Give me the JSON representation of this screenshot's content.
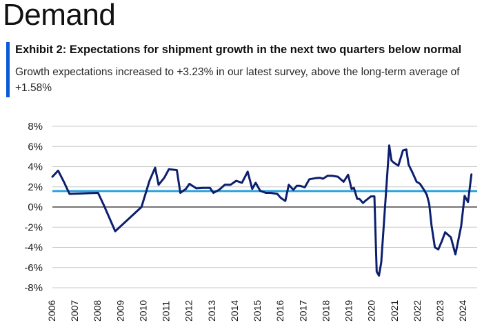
{
  "page": {
    "heading": "Demand"
  },
  "exhibit": {
    "title": "Exhibit 2: Expectations for shipment growth in the next two quarters below normal",
    "subtitle": "Growth expectations increased to +3.23% in our latest survey, above the long-term average of +1.58%"
  },
  "colors": {
    "accent": "#0a5bd6",
    "series": "#0c1f6e",
    "average": "#2aa3dc",
    "grid": "#c8c8c8"
  },
  "chart_data": {
    "type": "line",
    "title": "",
    "xlabel": "",
    "ylabel": "",
    "ylim": [
      -8,
      8
    ],
    "xlim": [
      2006,
      2024.6
    ],
    "y_ticks": [
      8,
      6,
      4,
      2,
      0,
      -2,
      -4,
      -6,
      -8
    ],
    "y_tick_labels": [
      "8%",
      "6%",
      "4%",
      "2%",
      "0%",
      "-2%",
      "-4%",
      "-6%",
      "-8%"
    ],
    "x_ticks": [
      2006,
      2007,
      2008,
      2009,
      2010,
      2011,
      2012,
      2013,
      2014,
      2015,
      2016,
      2017,
      2018,
      2019,
      2020,
      2021,
      2022,
      2023,
      2024
    ],
    "x_tick_labels": [
      "2006",
      "2007",
      "2008",
      "2009",
      "2010",
      "2011",
      "2012",
      "2013",
      "2014",
      "2015",
      "2016",
      "2017",
      "2018",
      "2019",
      "2020",
      "2021",
      "2022",
      "2023",
      "2024"
    ],
    "long_term_average": 1.58,
    "series": [
      {
        "name": "Shipment growth expectations",
        "x": [
          2006.0,
          2006.25,
          2006.5,
          2006.75,
          2008.0,
          2008.25,
          2008.75,
          2009.9,
          2010.25,
          2010.5,
          2010.65,
          2010.9,
          2011.1,
          2011.45,
          2011.6,
          2011.85,
          2012.0,
          2012.3,
          2012.6,
          2012.9,
          2013.05,
          2013.3,
          2013.55,
          2013.8,
          2014.05,
          2014.3,
          2014.55,
          2014.75,
          2014.9,
          2015.1,
          2015.35,
          2015.55,
          2015.85,
          2016.0,
          2016.2,
          2016.35,
          2016.55,
          2016.7,
          2016.85,
          2017.05,
          2017.25,
          2017.5,
          2017.7,
          2017.85,
          2018.05,
          2018.25,
          2018.5,
          2018.75,
          2018.95,
          2019.1,
          2019.2,
          2019.35,
          2019.45,
          2019.6,
          2019.75,
          2019.95,
          2020.1,
          2020.2,
          2020.3,
          2020.4,
          2020.55,
          2020.75,
          2020.85,
          2020.95,
          2021.15,
          2021.35,
          2021.5,
          2021.6,
          2021.75,
          2021.95,
          2022.1,
          2022.3,
          2022.4,
          2022.5,
          2022.6,
          2022.75,
          2022.9,
          2023.05,
          2023.2,
          2023.45,
          2023.65,
          2023.9,
          2024.05,
          2024.2,
          2024.35
        ],
        "values": [
          3.0,
          3.6,
          2.5,
          1.3,
          1.4,
          0.2,
          -2.4,
          0.0,
          2.6,
          3.9,
          2.2,
          2.9,
          3.75,
          3.65,
          1.4,
          1.8,
          2.3,
          1.85,
          1.9,
          1.9,
          1.4,
          1.7,
          2.2,
          2.2,
          2.6,
          2.4,
          3.5,
          1.8,
          2.4,
          1.6,
          1.4,
          1.4,
          1.3,
          0.9,
          0.6,
          2.2,
          1.7,
          2.1,
          2.1,
          1.95,
          2.75,
          2.85,
          2.9,
          2.8,
          3.1,
          3.1,
          3.0,
          2.5,
          3.2,
          1.8,
          1.9,
          0.8,
          0.8,
          0.4,
          0.7,
          1.05,
          1.05,
          -6.4,
          -6.8,
          -5.5,
          -0.5,
          6.1,
          4.6,
          4.4,
          4.1,
          5.6,
          5.7,
          4.2,
          3.5,
          2.5,
          2.3,
          1.6,
          1.2,
          0.3,
          -1.8,
          -4.0,
          -4.2,
          -3.4,
          -2.5,
          -3.0,
          -4.7,
          -1.9,
          1.1,
          0.5,
          3.23
        ]
      }
    ]
  }
}
